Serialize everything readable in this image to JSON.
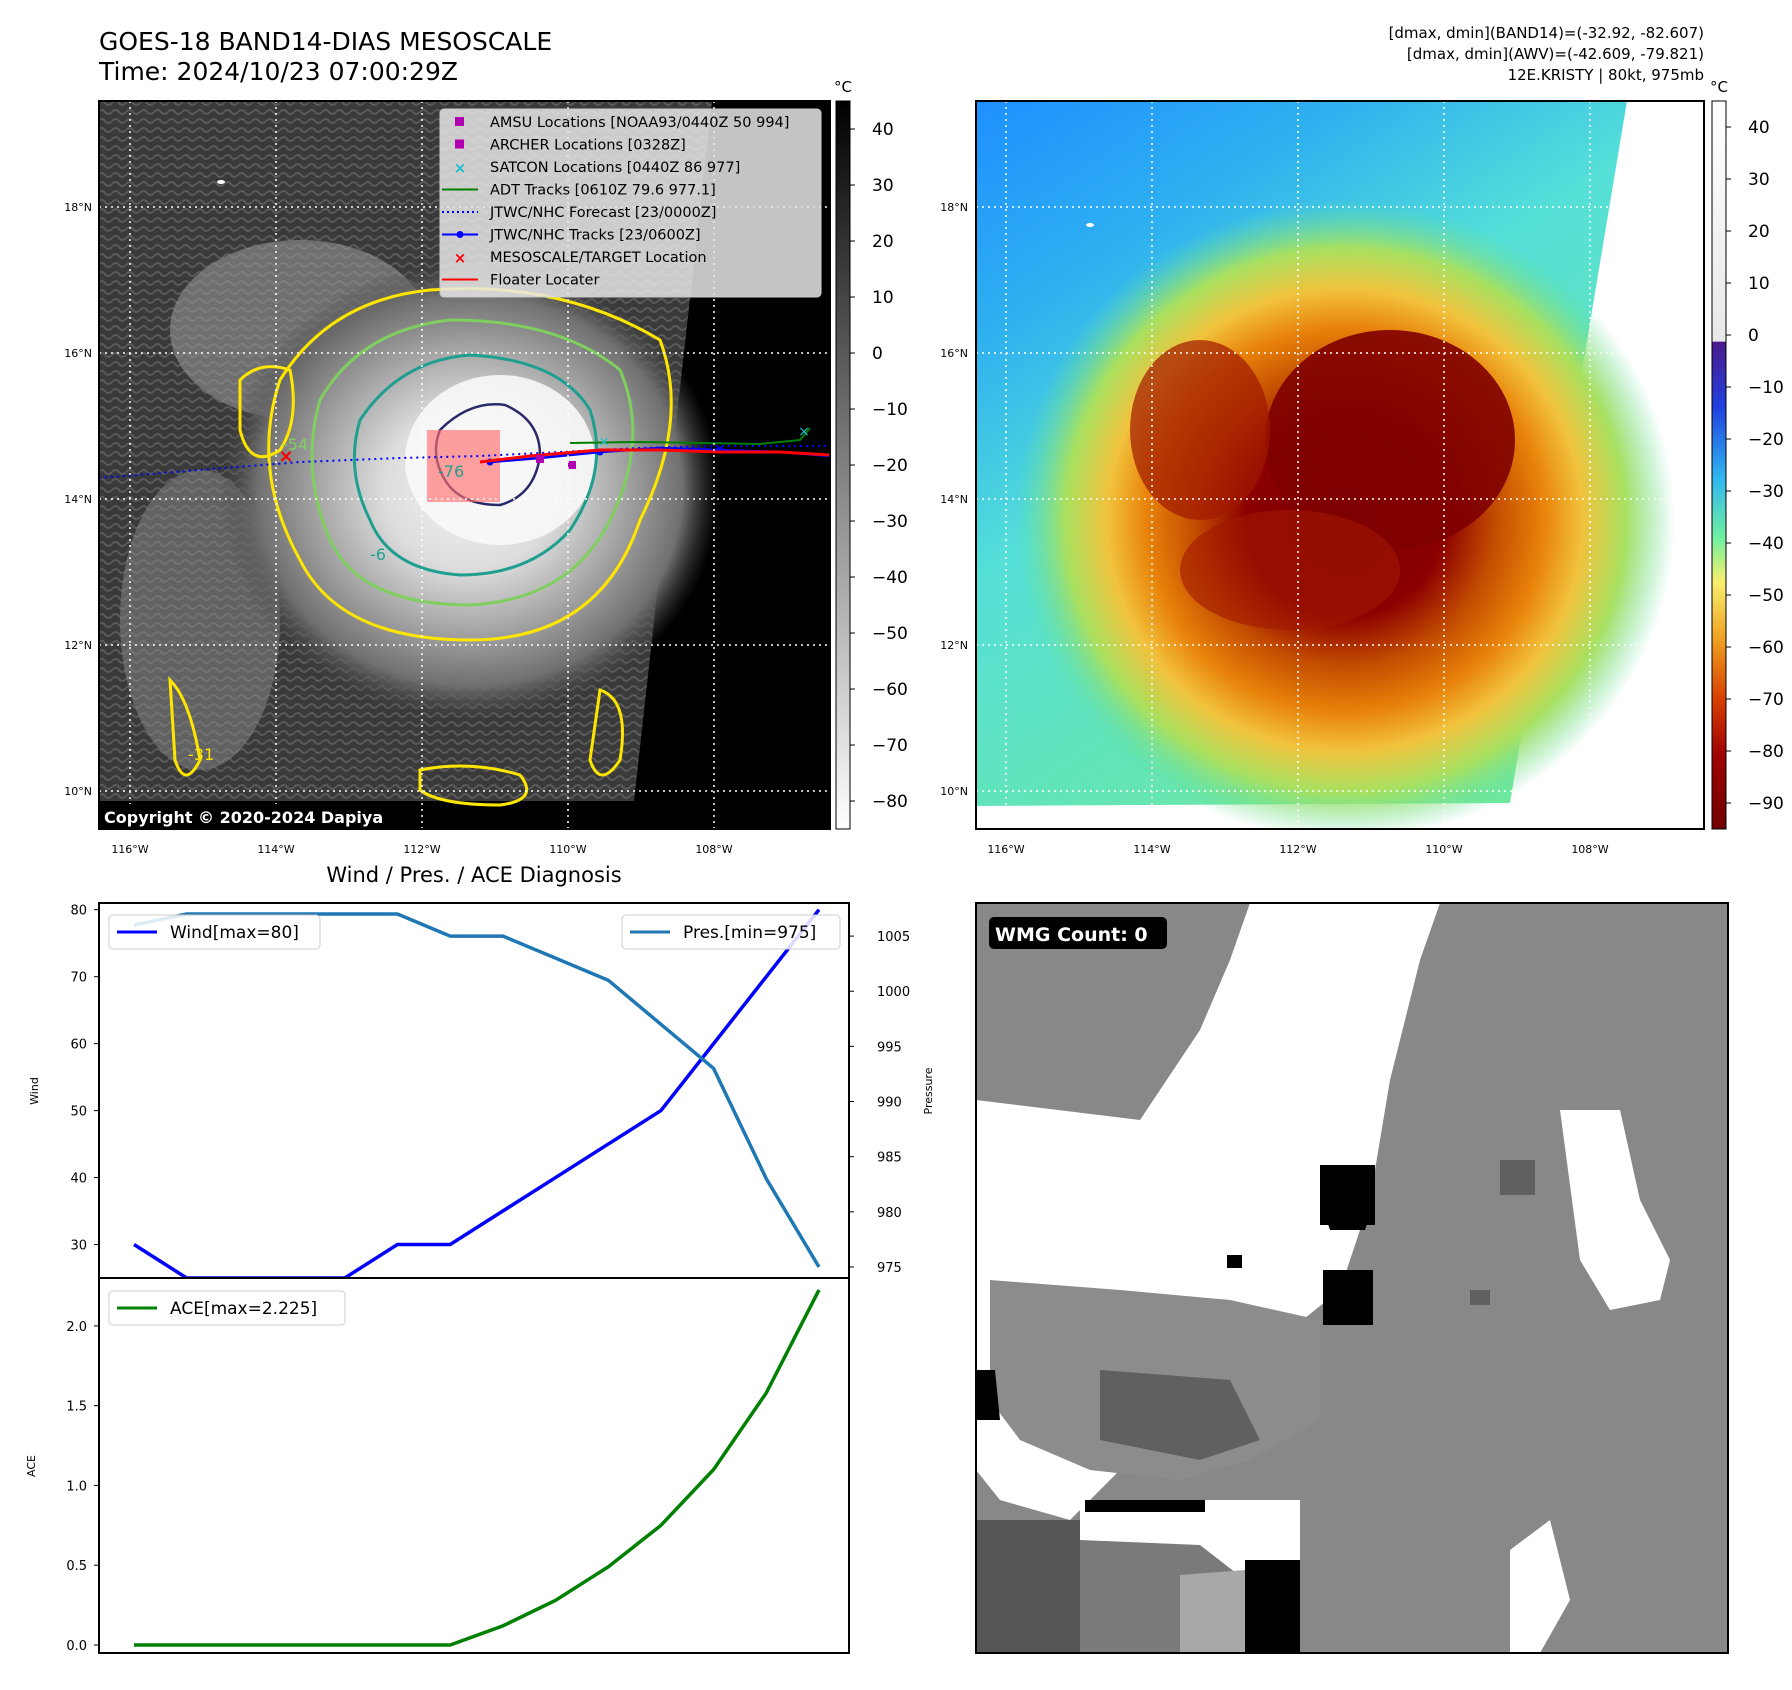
{
  "header": {
    "title": "GOES-18 BAND14-DIAS MESOSCALE",
    "time": "Time: 2024/10/23 07:00:29Z",
    "stats_band14": "[dmax, dmin](BAND14)=(-32.92, -82.607)",
    "stats_awv": "[dmax, dmin](AWV)=(-42.609, -79.821)",
    "storm": "12E.KRISTY | 80kt, 975mb"
  },
  "ir_panel": {
    "copyright": "Copyright © 2020-2024 Dapiya",
    "colorbar_unit": "°C",
    "colorbar_ticks": [
      40,
      30,
      20,
      10,
      0,
      -10,
      -20,
      -30,
      -40,
      -50,
      -60,
      -70,
      -80
    ],
    "contour_labels": [
      "-54",
      "-76",
      "-6",
      "-31"
    ],
    "lat_labels": [
      "18°N",
      "16°N",
      "14°N",
      "12°N",
      "10°N"
    ],
    "lon_labels": [
      "116°W",
      "114°W",
      "112°W",
      "110°W",
      "108°W"
    ],
    "legend": [
      {
        "label": "AMSU Locations [NOAA93/0440Z 50 994]",
        "marker": "square",
        "color": "#b000b0"
      },
      {
        "label": "ARCHER Locations [0328Z]",
        "marker": "square",
        "color": "#b000b0"
      },
      {
        "label": "SATCON Locations [0440Z 86 977]",
        "marker": "x",
        "color": "#17becf"
      },
      {
        "label": "ADT Tracks [0610Z 79.6 977.1]",
        "marker": "line",
        "color": "#008000"
      },
      {
        "label": "JTWC/NHC Forecast [23/0000Z]",
        "marker": "dotted",
        "color": "#0000ff"
      },
      {
        "label": "JTWC/NHC Tracks [23/0600Z]",
        "marker": "line-dot",
        "color": "#0000ff"
      },
      {
        "label": "MESOSCALE/TARGET Location",
        "marker": "x",
        "color": "#ff0000"
      },
      {
        "label": "Floater Locater",
        "marker": "line",
        "color": "#ff0000"
      }
    ]
  },
  "awv_panel": {
    "colorbar_unit": "°C",
    "colorbar_ticks": [
      40,
      30,
      20,
      10,
      0,
      -10,
      -20,
      -30,
      -40,
      -50,
      -60,
      -70,
      -80,
      -90
    ],
    "lat_labels": [
      "18°N",
      "16°N",
      "14°N",
      "12°N",
      "10°N"
    ],
    "lon_labels": [
      "116°W",
      "114°W",
      "112°W",
      "110°W",
      "108°W"
    ]
  },
  "wmg_panel": {
    "badge": "WMG Count: 0"
  },
  "chart_data": [
    {
      "type": "line",
      "title": "Wind / Pres. / ACE Diagnosis",
      "ylabel": "Wind",
      "ylabel_right": "Pressure",
      "ylim": [
        25,
        81
      ],
      "ylim_right": [
        974,
        1008
      ],
      "yticks": [
        30,
        40,
        50,
        60,
        70,
        80
      ],
      "yticks_right": [
        975,
        980,
        985,
        990,
        995,
        1000,
        1005
      ],
      "series": [
        {
          "name": "Wind[max=80]",
          "axis": "left",
          "color": "#0000ff",
          "values": [
            30,
            25,
            25,
            25,
            25,
            30,
            30,
            35,
            40,
            45,
            50,
            60,
            70,
            80
          ]
        },
        {
          "name": "Pres.[min=975]",
          "axis": "right",
          "color": "#1f77b4",
          "values": [
            1006,
            1007,
            1007,
            1007,
            1007,
            1007,
            1005,
            1005,
            1003,
            1001,
            997,
            993,
            983,
            975
          ]
        }
      ]
    },
    {
      "type": "line",
      "ylabel": "ACE",
      "ylim": [
        -0.05,
        2.3
      ],
      "yticks": [
        "0.0",
        "0.5",
        "1.0",
        "1.5",
        "2.0"
      ],
      "series": [
        {
          "name": "ACE[max=2.225]",
          "color": "#008000",
          "values": [
            0,
            0,
            0,
            0,
            0,
            0,
            0,
            0.12,
            0.28,
            0.49,
            0.75,
            1.1,
            1.58,
            2.225
          ]
        }
      ]
    }
  ]
}
